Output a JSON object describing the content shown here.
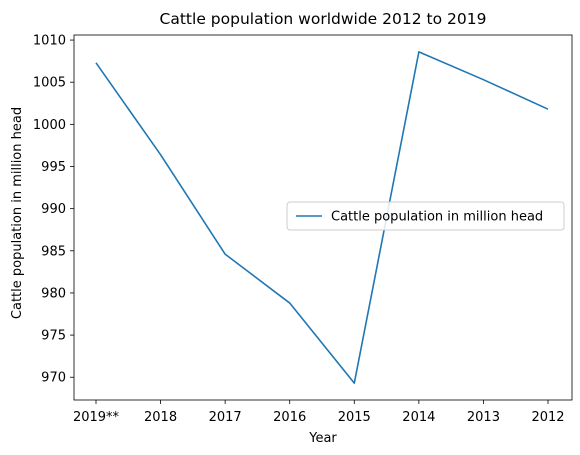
{
  "chart_data": {
    "type": "line",
    "title": "Cattle population worldwide 2012 to 2019",
    "xlabel": "Year",
    "ylabel": "Cattle population in million head",
    "categories": [
      "2019**",
      "2018",
      "2017",
      "2016",
      "2015",
      "2014",
      "2013",
      "2012"
    ],
    "series": [
      {
        "name": "Cattle population in million head",
        "color": "#1f77b4",
        "values": [
          1007.3,
          996.4,
          984.6,
          978.8,
          969.3,
          1008.6,
          1005.3,
          1001.8
        ]
      }
    ],
    "yticks": [
      970,
      975,
      980,
      985,
      990,
      995,
      1000,
      1005,
      1010
    ],
    "ylim": [
      967.3,
      1010.6
    ],
    "grid": false,
    "legend_position": "center-right"
  }
}
